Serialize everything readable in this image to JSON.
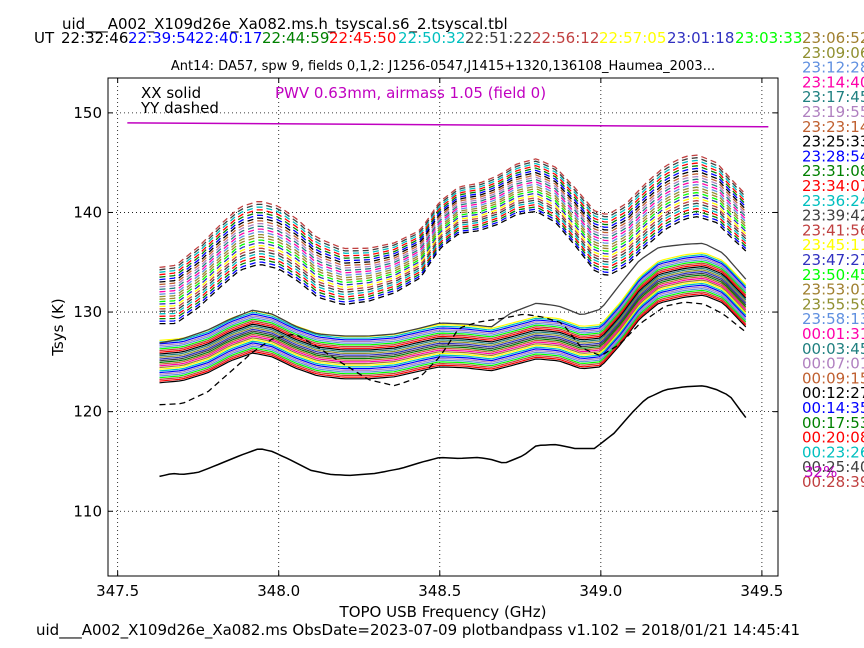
{
  "header": {
    "title": "uid___A002_X109d26e_Xa082.ms.h_tsyscal.s6_2.tsyscal.tbl",
    "ut_label": "UT"
  },
  "time_row": [
    {
      "t": "22:32:46",
      "color": "#000000"
    },
    {
      "t": "22:39:54",
      "color": "#0000ff"
    },
    {
      "t": "22:40:17",
      "color": "#0000ff"
    },
    {
      "t": "22:44:59",
      "color": "#008000"
    },
    {
      "t": "22:45:50",
      "color": "#ff0000"
    },
    {
      "t": "22:50:32",
      "color": "#00bfbf"
    },
    {
      "t": "22:51:22",
      "color": "#404040"
    },
    {
      "t": "22:56:12",
      "color": "#c04040"
    },
    {
      "t": "22:57:05",
      "color": "#ffff00"
    },
    {
      "t": "23:01:18",
      "color": "#3030c0"
    },
    {
      "t": "23:03:33",
      "color": "#00ff00"
    }
  ],
  "legend_times": [
    {
      "t": "23:06:52",
      "color": "#a08030"
    },
    {
      "t": "23:09:06",
      "color": "#909030"
    },
    {
      "t": "23:12:28",
      "color": "#6090e0"
    },
    {
      "t": "23:14:40",
      "color": "#ff00aa"
    },
    {
      "t": "23:17:45",
      "color": "#208080"
    },
    {
      "t": "23:19:55",
      "color": "#b080c0"
    },
    {
      "t": "23:23:14",
      "color": "#c06030"
    },
    {
      "t": "23:25:33",
      "color": "#000000"
    },
    {
      "t": "23:28:54",
      "color": "#0000ff"
    },
    {
      "t": "23:31:08",
      "color": "#008000"
    },
    {
      "t": "23:34:07",
      "color": "#ff0000"
    },
    {
      "t": "23:36:24",
      "color": "#00bfbf"
    },
    {
      "t": "23:39:42",
      "color": "#404040"
    },
    {
      "t": "23:41:56",
      "color": "#c04040"
    },
    {
      "t": "23:45:11",
      "color": "#ffff00"
    },
    {
      "t": "23:47:27",
      "color": "#3030c0"
    },
    {
      "t": "23:50:45",
      "color": "#00ff00"
    },
    {
      "t": "23:53:01",
      "color": "#a08030"
    },
    {
      "t": "23:55:59",
      "color": "#909030"
    },
    {
      "t": "23:58:13",
      "color": "#6090e0"
    },
    {
      "t": "00:01:31",
      "color": "#ff00aa"
    },
    {
      "t": "00:03:45",
      "color": "#208080"
    },
    {
      "t": "00:07:01",
      "color": "#b080c0"
    },
    {
      "t": "00:09:15",
      "color": "#c06030"
    },
    {
      "t": "00:12:27",
      "color": "#000000"
    },
    {
      "t": "00:14:35",
      "color": "#0000ff"
    },
    {
      "t": "00:17:53",
      "color": "#008000"
    },
    {
      "t": "00:20:08",
      "color": "#ff0000"
    },
    {
      "t": "00:23:26",
      "color": "#00bfbf"
    },
    {
      "t": "00:25:40",
      "color": "#404040"
    },
    {
      "t": "00:28:39",
      "color": "#c04040"
    }
  ],
  "legend_percent": {
    "text": "32%",
    "color": "#c000c0"
  },
  "footer": "uid___A002_X109d26e_Xa082.ms  ObsDate=2023-07-09   plotbandpass v1.102 = 2018/01/21 14:45:41",
  "chart_data": {
    "type": "line",
    "title": "Ant14: DA57,  spw 9,  fields 0,1,2: J1256-0547,J1415+1320,136108_Haumea_2003...",
    "xlabel": "TOPO USB Frequency (GHz)",
    "ylabel": "Tsys (K)",
    "xlim": [
      347.47,
      349.55
    ],
    "ylim": [
      103.5,
      153.5
    ],
    "xticks": [
      347.5,
      348.0,
      348.5,
      349.0,
      349.5
    ],
    "xtick_labels": [
      "347.5",
      "348.0",
      "348.5",
      "349.0",
      "349.5"
    ],
    "yticks": [
      110,
      120,
      130,
      140,
      150
    ],
    "ytick_labels": [
      "110",
      "120",
      "130",
      "140",
      "150"
    ],
    "grid": true,
    "annotations": {
      "polarization_xx": "XX solid",
      "polarization_yy": "YY dashed",
      "pwv": "PWV 0.63mm, airmass 1.05 (field 0)",
      "pwv_color": "#c000c0"
    },
    "x_start": 347.63,
    "x_end": 349.45,
    "solid_base": [
      [
        347.63,
        125.0
      ],
      [
        347.7,
        125.2
      ],
      [
        347.78,
        126.0
      ],
      [
        347.85,
        127.2
      ],
      [
        347.92,
        128.0
      ],
      [
        347.98,
        127.6
      ],
      [
        348.05,
        126.5
      ],
      [
        348.12,
        125.7
      ],
      [
        348.2,
        125.4
      ],
      [
        348.28,
        125.4
      ],
      [
        348.36,
        125.6
      ],
      [
        348.44,
        126.2
      ],
      [
        348.5,
        126.6
      ],
      [
        348.58,
        126.5
      ],
      [
        348.66,
        126.2
      ],
      [
        348.72,
        126.7
      ],
      [
        348.8,
        127.4
      ],
      [
        348.87,
        127.2
      ],
      [
        348.94,
        126.4
      ],
      [
        349.0,
        126.6
      ],
      [
        349.06,
        128.8
      ],
      [
        349.12,
        131.4
      ],
      [
        349.18,
        133.0
      ],
      [
        349.26,
        133.6
      ],
      [
        349.32,
        133.8
      ],
      [
        349.38,
        133.0
      ],
      [
        349.45,
        130.6
      ]
    ],
    "dashed_base": [
      [
        347.63,
        131.5
      ],
      [
        347.68,
        131.6
      ],
      [
        347.75,
        133.3
      ],
      [
        347.82,
        135.5
      ],
      [
        347.88,
        137.2
      ],
      [
        347.94,
        137.8
      ],
      [
        348.0,
        137.3
      ],
      [
        348.06,
        136.0
      ],
      [
        348.12,
        134.3
      ],
      [
        348.2,
        133.4
      ],
      [
        348.28,
        133.6
      ],
      [
        348.36,
        134.3
      ],
      [
        348.44,
        135.7
      ],
      [
        348.5,
        138.6
      ],
      [
        348.56,
        140.1
      ],
      [
        348.62,
        140.4
      ],
      [
        348.68,
        141.1
      ],
      [
        348.74,
        142.2
      ],
      [
        348.8,
        142.6
      ],
      [
        348.86,
        141.6
      ],
      [
        348.92,
        139.4
      ],
      [
        348.98,
        137.0
      ],
      [
        349.02,
        136.5
      ],
      [
        349.08,
        137.6
      ],
      [
        349.14,
        139.6
      ],
      [
        349.2,
        141.3
      ],
      [
        349.26,
        142.3
      ],
      [
        349.3,
        142.5
      ],
      [
        349.36,
        141.8
      ],
      [
        349.4,
        140.4
      ],
      [
        349.45,
        138.8
      ]
    ],
    "solid_top_extra": [
      [
        347.63,
        126.9
      ],
      [
        347.7,
        127.3
      ],
      [
        347.78,
        128.2
      ],
      [
        347.85,
        129.3
      ],
      [
        347.92,
        130.2
      ],
      [
        347.98,
        129.8
      ],
      [
        348.05,
        128.6
      ],
      [
        348.12,
        127.8
      ],
      [
        348.2,
        127.6
      ],
      [
        348.28,
        127.6
      ],
      [
        348.36,
        127.8
      ],
      [
        348.44,
        128.4
      ],
      [
        348.5,
        128.9
      ],
      [
        348.58,
        128.8
      ],
      [
        348.66,
        128.5
      ],
      [
        348.72,
        129.9
      ],
      [
        348.8,
        130.9
      ],
      [
        348.87,
        130.6
      ],
      [
        348.94,
        129.7
      ],
      [
        349.0,
        130.3
      ],
      [
        349.06,
        132.8
      ],
      [
        349.12,
        135.2
      ],
      [
        349.18,
        136.5
      ],
      [
        349.26,
        136.8
      ],
      [
        349.32,
        136.9
      ],
      [
        349.38,
        135.9
      ],
      [
        349.45,
        133.3
      ]
    ],
    "dashed_low": [
      [
        347.63,
        120.7
      ],
      [
        347.7,
        120.8
      ],
      [
        347.78,
        122.0
      ],
      [
        347.85,
        124.0
      ],
      [
        347.92,
        126.0
      ],
      [
        347.98,
        127.3
      ],
      [
        348.05,
        127.8
      ],
      [
        348.12,
        126.5
      ],
      [
        348.2,
        124.8
      ],
      [
        348.28,
        123.2
      ],
      [
        348.36,
        122.6
      ],
      [
        348.44,
        123.5
      ],
      [
        348.5,
        125.5
      ],
      [
        348.56,
        128.4
      ],
      [
        348.62,
        129.0
      ],
      [
        348.7,
        129.4
      ],
      [
        348.76,
        129.8
      ],
      [
        348.82,
        129.5
      ],
      [
        348.88,
        128.9
      ],
      [
        348.94,
        126.4
      ],
      [
        349.0,
        125.6
      ],
      [
        349.06,
        126.8
      ],
      [
        349.12,
        128.8
      ],
      [
        349.2,
        130.6
      ],
      [
        349.26,
        131.0
      ],
      [
        349.32,
        130.8
      ],
      [
        349.38,
        129.8
      ],
      [
        349.45,
        128.0
      ]
    ],
    "solid_low": [
      [
        347.63,
        113.5
      ],
      [
        347.67,
        113.8
      ],
      [
        347.7,
        113.7
      ],
      [
        347.75,
        113.9
      ],
      [
        347.82,
        114.8
      ],
      [
        347.88,
        115.6
      ],
      [
        347.94,
        116.3
      ],
      [
        347.98,
        116.0
      ],
      [
        348.04,
        115.1
      ],
      [
        348.1,
        114.1
      ],
      [
        348.16,
        113.7
      ],
      [
        348.22,
        113.6
      ],
      [
        348.3,
        113.8
      ],
      [
        348.38,
        114.3
      ],
      [
        348.44,
        114.9
      ],
      [
        348.5,
        115.4
      ],
      [
        348.56,
        115.3
      ],
      [
        348.62,
        115.4
      ],
      [
        348.66,
        115.2
      ],
      [
        348.7,
        114.8
      ],
      [
        348.76,
        115.6
      ],
      [
        348.8,
        116.6
      ],
      [
        348.86,
        116.7
      ],
      [
        348.92,
        116.3
      ],
      [
        348.98,
        116.3
      ],
      [
        349.04,
        117.8
      ],
      [
        349.1,
        120.0
      ],
      [
        349.14,
        121.3
      ],
      [
        349.2,
        122.2
      ],
      [
        349.26,
        122.5
      ],
      [
        349.32,
        122.6
      ],
      [
        349.36,
        122.2
      ],
      [
        349.4,
        121.6
      ],
      [
        349.45,
        119.4
      ]
    ],
    "pwv_line": [
      [
        347.53,
        149.0
      ],
      [
        349.52,
        148.6
      ]
    ]
  }
}
